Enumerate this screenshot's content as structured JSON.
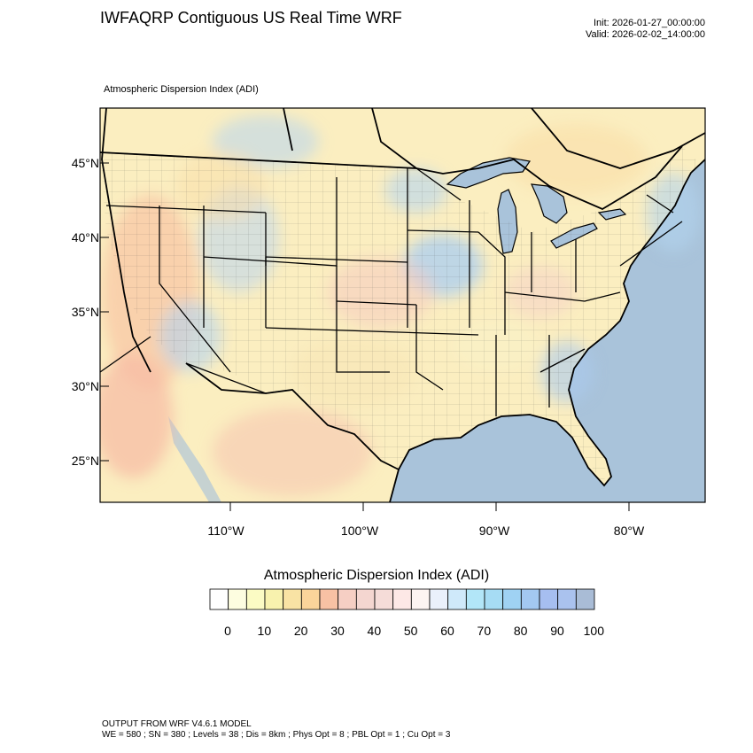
{
  "header": {
    "title": "IWFAQRP Contiguous US Real Time WRF",
    "init": "Init: 2026-01-27_00:00:00",
    "valid": "Valid: 2026-02-02_14:00:00"
  },
  "map": {
    "field_label": "Atmospheric Dispersion Index   (ADI)",
    "lat_labels": [
      "45°N",
      "40°N",
      "35°N",
      "30°N",
      "25°N"
    ],
    "lon_labels": [
      "110°W",
      "100°W",
      "90°W",
      "80°W"
    ],
    "colors": {
      "ocean": "#a9c3da",
      "land_base": "#fbeec0",
      "great_lakes": "#a9c3da",
      "state_border": "#000000",
      "county_border": "#333333"
    }
  },
  "colorbar": {
    "title": "Atmospheric Dispersion Index  (ADI)",
    "labels": [
      "0",
      "10",
      "20",
      "30",
      "40",
      "50",
      "60",
      "70",
      "80",
      "90",
      "100"
    ],
    "colors": [
      "#ffffff",
      "#fdfde0",
      "#fbfbc4",
      "#f8f2ae",
      "#f9e3a4",
      "#fbd49a",
      "#f8c1a4",
      "#f6cfc4",
      "#f4d6d0",
      "#f5dcd8",
      "#fde8e6",
      "#fdf4f2",
      "#eaf0fb",
      "#cfe9fa",
      "#b2e6f8",
      "#a6dcf4",
      "#9fd2f3",
      "#a3c8f1",
      "#a6bef0",
      "#aac2ee",
      "#a9bcd6"
    ]
  },
  "footer": {
    "line1": "OUTPUT FROM WRF V4.6.1 MODEL",
    "line2": "WE = 580 ; SN = 380 ; Levels = 38 ; Dis = 8km ; Phys Opt = 8 ; PBL Opt = 1 ; Cu Opt = 3"
  }
}
